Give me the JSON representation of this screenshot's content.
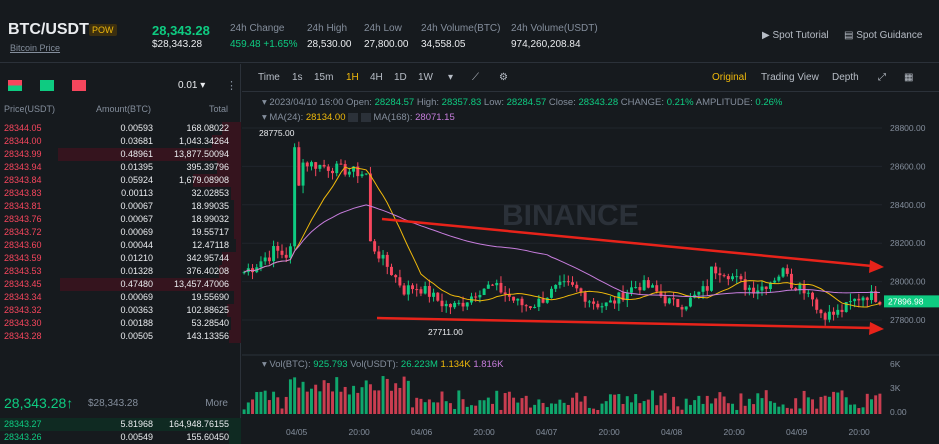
{
  "header": {
    "pair": "BTC/USDT",
    "badge": "POW",
    "subtitle": "Bitcoin Price",
    "last_price": "28,343.28",
    "last_price_usd": "$28,343.28",
    "stats": [
      {
        "label": "24h Change",
        "value": "459.48 +1.65%"
      },
      {
        "label": "24h High",
        "value": "28,530.00"
      },
      {
        "label": "24h Low",
        "value": "27,800.00"
      },
      {
        "label": "24h Volume(BTC)",
        "value": "34,558.05"
      },
      {
        "label": "24h Volume(USDT)",
        "value": "974,260,208.84"
      }
    ],
    "links": [
      "Spot Tutorial",
      "Spot Guidance"
    ]
  },
  "orderbook": {
    "precision": "0.01",
    "headers": [
      "Price(USDT)",
      "Amount(BTC)",
      "Total"
    ],
    "asks": [
      [
        "28344.05",
        "0.00593",
        "168.08022"
      ],
      [
        "28344.00",
        "0.03681",
        "1,043.34264"
      ],
      [
        "28343.99",
        "0.48961",
        "13,877.50094"
      ],
      [
        "28343.94",
        "0.01395",
        "395.39796"
      ],
      [
        "28343.84",
        "0.05924",
        "1,679.08908"
      ],
      [
        "28343.83",
        "0.00113",
        "32.02853"
      ],
      [
        "28343.81",
        "0.00067",
        "18.99035"
      ],
      [
        "28343.76",
        "0.00067",
        "18.99032"
      ],
      [
        "28343.72",
        "0.00069",
        "19.55717"
      ],
      [
        "28343.60",
        "0.00044",
        "12.47118"
      ],
      [
        "28343.59",
        "0.01210",
        "342.95744"
      ],
      [
        "28343.53",
        "0.01328",
        "376.40208"
      ],
      [
        "28343.45",
        "0.47480",
        "13,457.47006"
      ],
      [
        "28343.34",
        "0.00069",
        "19.55690"
      ],
      [
        "28343.32",
        "0.00363",
        "102.88625"
      ],
      [
        "28343.30",
        "0.00188",
        "53.28540"
      ],
      [
        "28343.28",
        "0.00505",
        "143.13356"
      ]
    ],
    "mid_price": "28,343.28↑",
    "mid_usd": "$28,343.28",
    "more": "More",
    "bids": [
      [
        "28343.27",
        "5.81968",
        "164,948.76155"
      ],
      [
        "28343.26",
        "0.00549",
        "155.60450"
      ]
    ]
  },
  "toolbar": {
    "time": "Time",
    "intervals": [
      "1s",
      "15m",
      "1H",
      "4H",
      "1D",
      "1W"
    ],
    "active": "1H",
    "views": [
      "Original",
      "Trading View",
      "Depth"
    ],
    "active_view": "Original"
  },
  "ohlc": {
    "date": "2023/04/10 16:00",
    "open_label": "Open:",
    "open": "28284.57",
    "high_label": "High:",
    "high": "28357.83",
    "low_label": "Low:",
    "low": "28284.57",
    "close_label": "Close:",
    "close": "28343.28",
    "change_label": "CHANGE:",
    "change": "0.21%",
    "amp_label": "AMPLITUDE:",
    "amp": "0.26%"
  },
  "ma": {
    "ma24_label": "MA(24):",
    "ma24": "28134.00",
    "ma168_label": "MA(168):",
    "ma168": "28071.15"
  },
  "vol": {
    "btc_label": "Vol(BTC):",
    "btc": "925.793",
    "usdt_label": "Vol(USDT):",
    "usdt": "26.223M",
    "v1": "1.134K",
    "v2": "1.816K"
  },
  "watermark": "BINANCE",
  "chart_data": {
    "type": "candlestick",
    "y_ticks": [
      "28800.00",
      "28600.00",
      "28400.00",
      "28200.00",
      "28000.00",
      "27800.00"
    ],
    "vol_ticks": [
      "6K",
      "3K",
      "0.00"
    ],
    "x_ticks": [
      "04/05",
      "20:00",
      "04/06",
      "20:00",
      "04/07",
      "20:00",
      "04/08",
      "20:00",
      "04/09",
      "20:00"
    ],
    "high_mark": "28775.00",
    "low_mark": "27711.00",
    "current_price": "27896.98"
  }
}
